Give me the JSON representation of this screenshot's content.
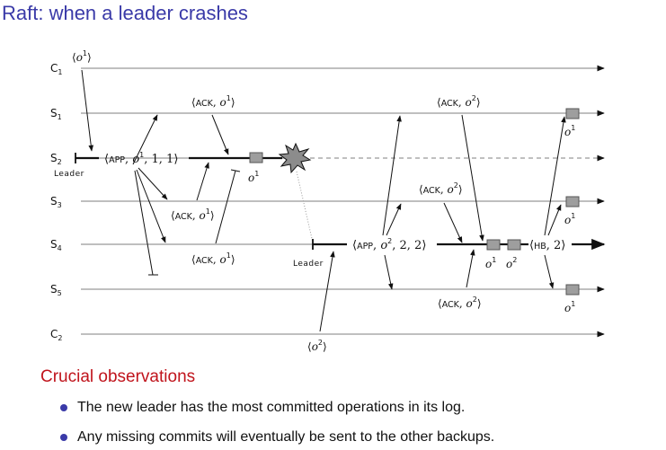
{
  "title": "Raft: when a leader crashes",
  "diagram": {
    "processes": [
      "C",
      "S",
      "S",
      "S",
      "S",
      "S",
      "C"
    ],
    "process_indices": [
      "1",
      "1",
      "2",
      "3",
      "4",
      "5",
      "2"
    ],
    "leader_label": "Leader",
    "messages": {
      "client_op1": "o",
      "client_op1_sup": "1",
      "ack": "ACK",
      "app": "APP",
      "hb": "HB",
      "app1_args": "1, 1",
      "app2_args": "2, 2",
      "hb_args": "2",
      "op": "o",
      "sup1": "1",
      "sup2": "2"
    },
    "colors": {
      "timeline": "#999999",
      "log_box": "#9e9e9e",
      "crash_fill": "#8c8c8c",
      "title": "#3a3aa8"
    }
  },
  "observations": {
    "heading": "Crucial observations",
    "bullets": [
      "The new leader has the most committed operations in its log.",
      "Any missing commits will eventually be sent to the other backups."
    ]
  }
}
